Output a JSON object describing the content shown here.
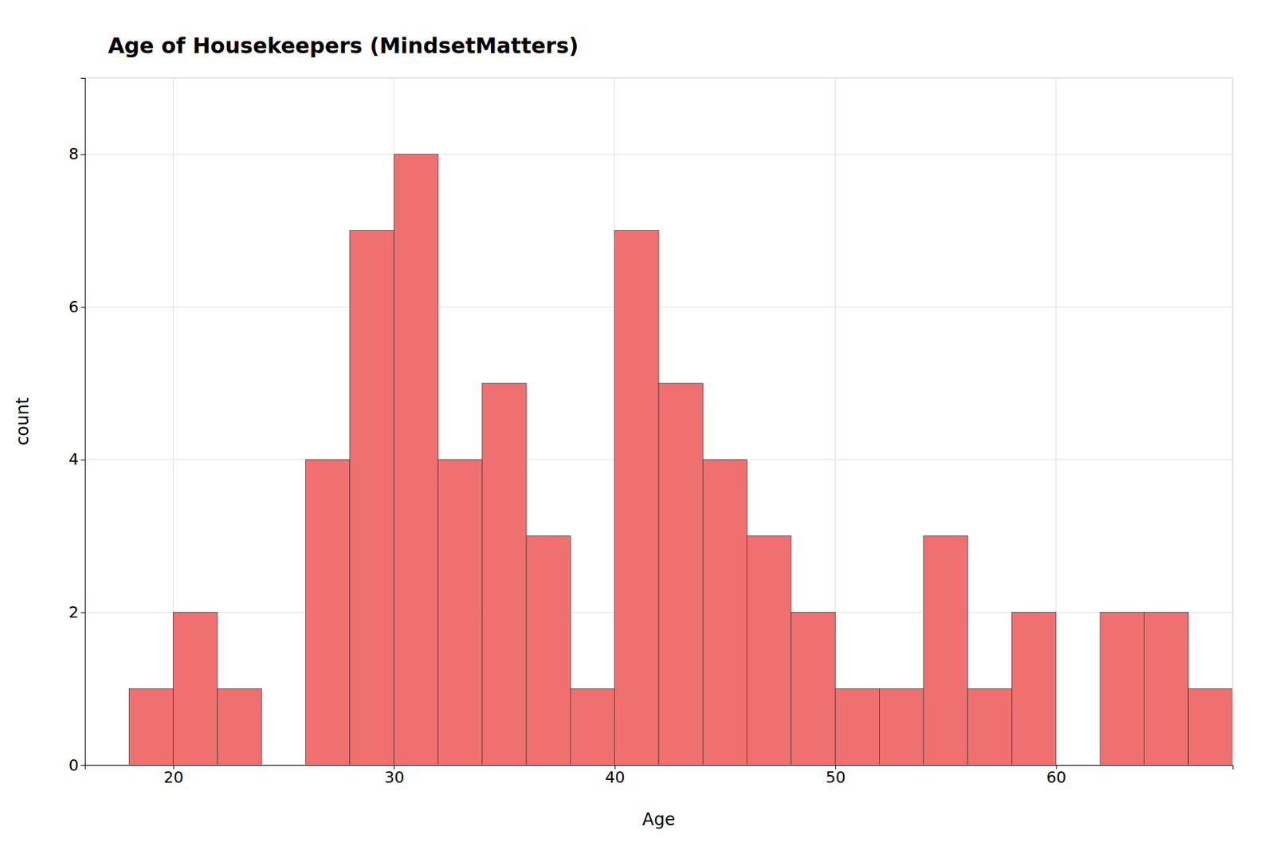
{
  "chart_data": {
    "type": "histogram",
    "title": "Age of Housekeepers (MindsetMatters)",
    "xlabel": "Age",
    "ylabel": "count",
    "bins": [
      18,
      20,
      22,
      24,
      26,
      28,
      30,
      32,
      34,
      36,
      38,
      40,
      42,
      44,
      46,
      48,
      50,
      52,
      54,
      56,
      58,
      60,
      62,
      64,
      66,
      68
    ],
    "values": [
      1,
      2,
      1,
      0,
      4,
      7,
      8,
      4,
      5,
      3,
      1,
      7,
      5,
      4,
      3,
      2,
      1,
      1,
      3,
      1,
      2,
      0,
      2,
      2,
      1
    ],
    "color": "#F07070",
    "xlim": [
      16,
      68
    ],
    "xticks": [
      20,
      30,
      40,
      50,
      60
    ],
    "ylim": [
      0,
      9
    ],
    "yticks": [
      0,
      2,
      4,
      6,
      8
    ],
    "grid": true
  }
}
